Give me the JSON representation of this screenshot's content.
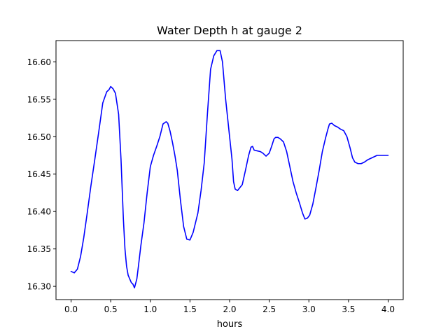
{
  "chart_data": {
    "type": "line",
    "title": "Water Depth h at gauge 2",
    "xlabel": "hours",
    "ylabel": "",
    "xlim": [
      -0.19,
      4.19
    ],
    "ylim": [
      16.2823,
      16.6284
    ],
    "xticks": [
      0.0,
      0.5,
      1.0,
      1.5,
      2.0,
      2.5,
      3.0,
      3.5,
      4.0
    ],
    "xtick_labels": [
      "0.0",
      "0.5",
      "1.0",
      "1.5",
      "2.0",
      "2.5",
      "3.0",
      "3.5",
      "4.0"
    ],
    "yticks": [
      16.3,
      16.35,
      16.4,
      16.45,
      16.5,
      16.55,
      16.6
    ],
    "ytick_labels": [
      "16.30",
      "16.35",
      "16.40",
      "16.45",
      "16.50",
      "16.55",
      "16.60"
    ],
    "grid": false,
    "colors": {
      "line": "#0000ff",
      "axes": "#000000",
      "background": "#ffffff"
    },
    "series": [
      {
        "x": [
          0.0,
          0.04,
          0.08,
          0.12,
          0.16,
          0.2,
          0.25,
          0.3,
          0.35,
          0.4,
          0.45,
          0.48,
          0.5,
          0.53,
          0.56,
          0.6,
          0.63,
          0.66,
          0.68,
          0.7,
          0.72,
          0.74,
          0.76,
          0.78,
          0.8,
          0.83,
          0.85,
          0.88,
          0.92,
          0.96,
          1.0,
          1.04,
          1.08,
          1.12,
          1.16,
          1.2,
          1.22,
          1.25,
          1.28,
          1.31,
          1.34,
          1.38,
          1.42,
          1.46,
          1.5,
          1.54,
          1.57,
          1.6,
          1.64,
          1.68,
          1.72,
          1.76,
          1.8,
          1.84,
          1.88,
          1.91,
          1.93,
          1.95,
          1.98,
          2.01,
          2.03,
          2.05,
          2.07,
          2.1,
          2.13,
          2.16,
          2.2,
          2.24,
          2.27,
          2.29,
          2.31,
          2.35,
          2.39,
          2.42,
          2.46,
          2.5,
          2.53,
          2.56,
          2.58,
          2.61,
          2.64,
          2.68,
          2.72,
          2.76,
          2.8,
          2.84,
          2.88,
          2.92,
          2.95,
          2.98,
          3.01,
          3.05,
          3.09,
          3.13,
          3.17,
          3.21,
          3.24,
          3.26,
          3.29,
          3.32,
          3.36,
          3.4,
          3.44,
          3.48,
          3.52,
          3.55,
          3.58,
          3.62,
          3.66,
          3.7,
          3.74,
          3.78,
          3.82,
          3.86,
          3.9,
          3.94,
          3.97,
          4.0
        ],
        "y": [
          16.32,
          16.318,
          16.323,
          16.34,
          16.365,
          16.395,
          16.434,
          16.47,
          16.507,
          16.545,
          16.56,
          16.563,
          16.567,
          16.564,
          16.558,
          16.53,
          16.47,
          16.39,
          16.35,
          16.327,
          16.315,
          16.31,
          16.305,
          16.303,
          16.298,
          16.31,
          16.327,
          16.354,
          16.385,
          16.425,
          16.46,
          16.475,
          16.487,
          16.5,
          16.517,
          16.52,
          16.518,
          16.507,
          16.492,
          16.475,
          16.455,
          16.415,
          16.38,
          16.363,
          16.362,
          16.372,
          16.385,
          16.398,
          16.428,
          16.465,
          16.53,
          16.59,
          16.608,
          16.615,
          16.615,
          16.6,
          16.575,
          16.55,
          16.52,
          16.49,
          16.47,
          16.44,
          16.43,
          16.428,
          16.432,
          16.436,
          16.455,
          16.475,
          16.486,
          16.487,
          16.482,
          16.481,
          16.48,
          16.478,
          16.474,
          16.478,
          16.487,
          16.497,
          16.499,
          16.499,
          16.497,
          16.493,
          16.48,
          16.46,
          16.44,
          16.425,
          16.412,
          16.398,
          16.39,
          16.391,
          16.395,
          16.41,
          16.432,
          16.455,
          16.48,
          16.498,
          16.51,
          16.517,
          16.518,
          16.515,
          16.513,
          16.51,
          16.508,
          16.5,
          16.485,
          16.472,
          16.466,
          16.464,
          16.464,
          16.466,
          16.469,
          16.471,
          16.473,
          16.475,
          16.475,
          16.475,
          16.475,
          16.475
        ]
      }
    ]
  }
}
